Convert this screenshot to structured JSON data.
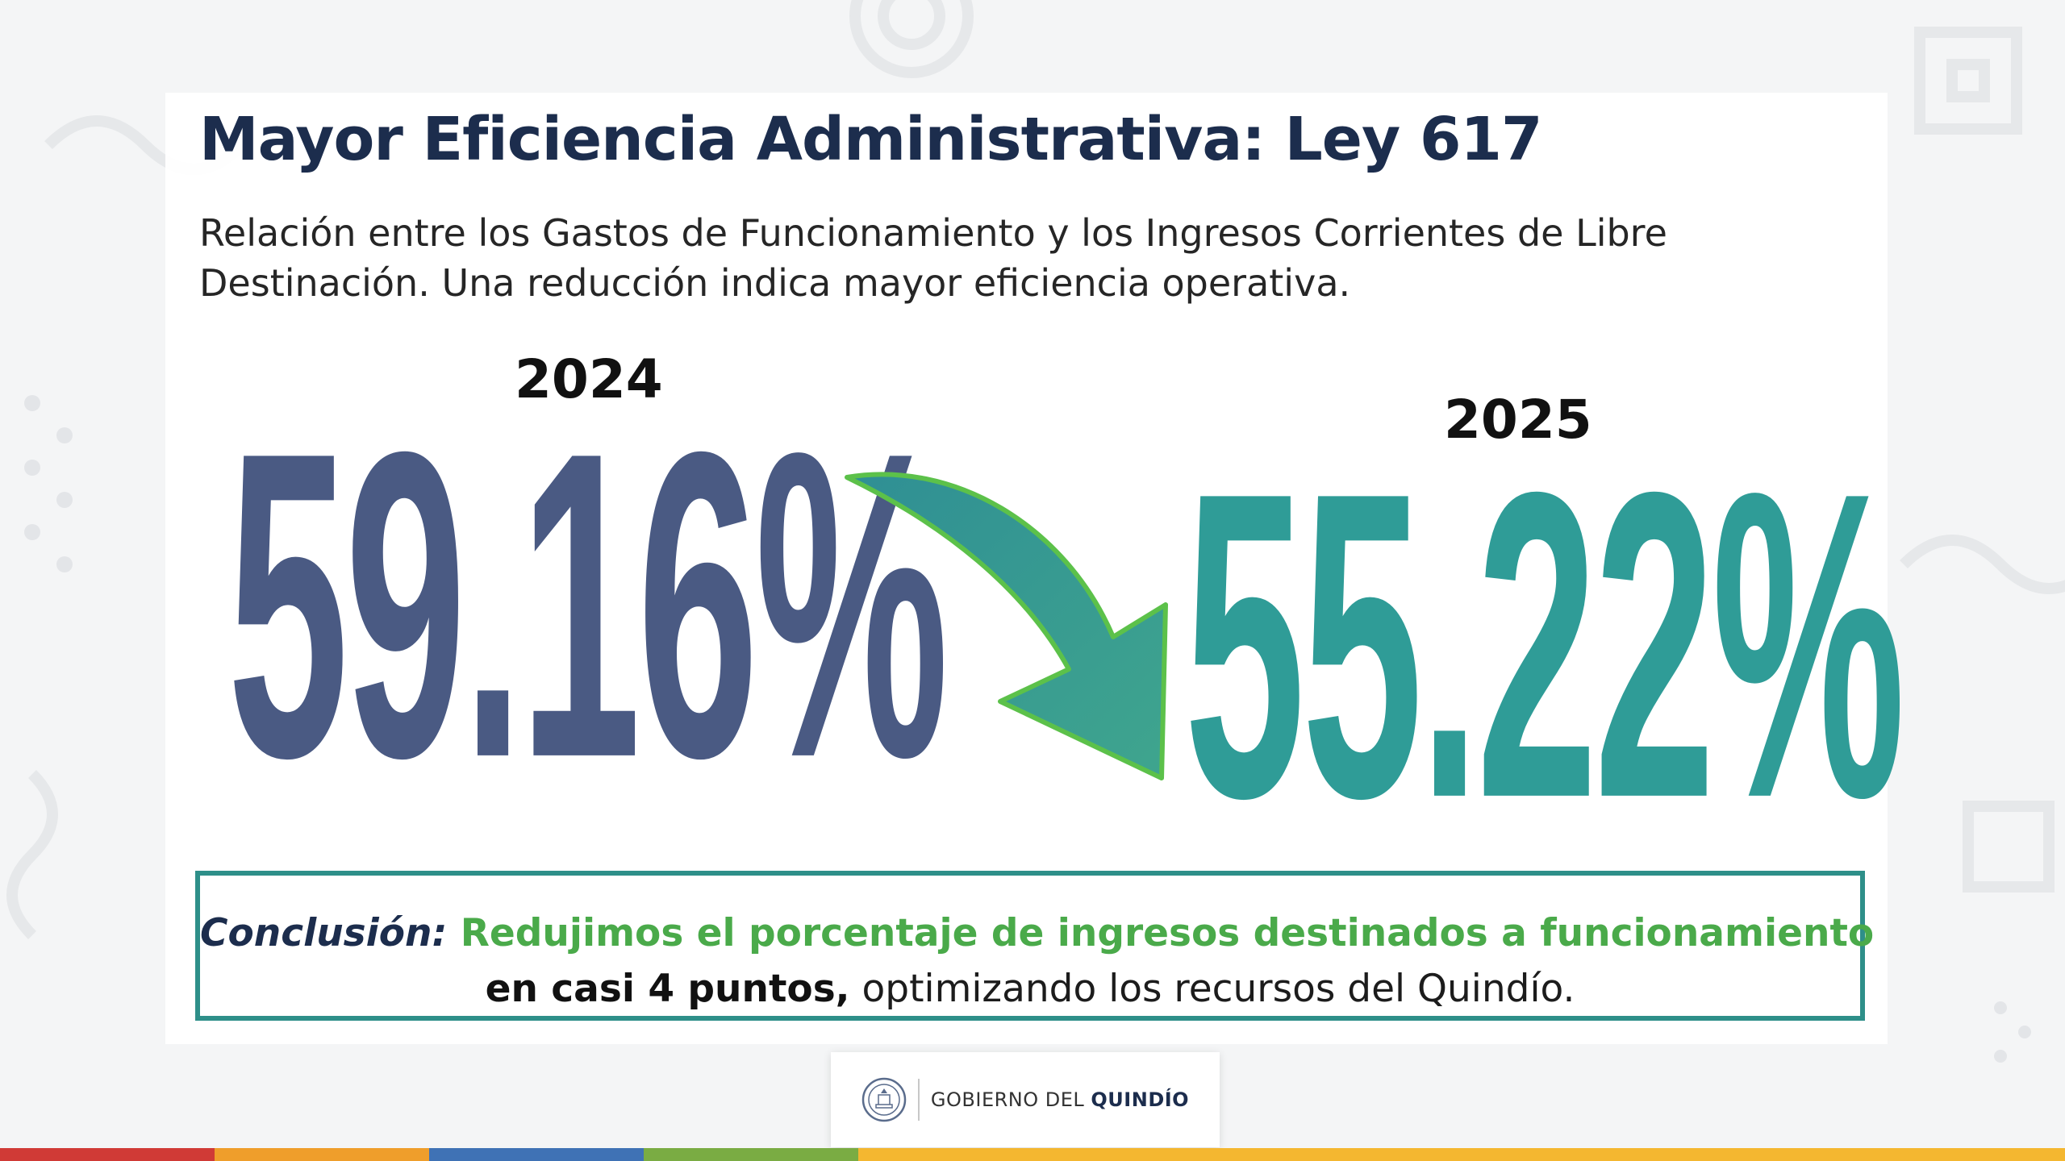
{
  "slide": {
    "title": "Mayor Eficiencia Administrativa: Ley 617",
    "subtitle": "Relación entre los Gastos de Funcionamiento y los Ingresos Corrientes de Libre Destinación. Una reducción indica mayor eficiencia operativa."
  },
  "comparison": {
    "left": {
      "year": "2024",
      "value": "59.16%",
      "color": "#4a5a83"
    },
    "right": {
      "year": "2025",
      "value": "55.22%",
      "color": "#2f9c97"
    },
    "arrow_icon": "curved-down-arrow-icon"
  },
  "conclusion": {
    "label": "Conclusión:",
    "highlight": "Redujimos el porcentaje de ingresos destinados a funcionamiento",
    "strong": "en casi 4 puntos,",
    "rest": " optimizando los recursos del Quindío."
  },
  "footer": {
    "logo_text_regular": "GOBIERNO DEL ",
    "logo_text_bold": "QUINDÍO",
    "seal_icon": "government-seal-icon",
    "stripe_colors": [
      "#d03a36",
      "#ef9e2b",
      "#3f72b5",
      "#7aac43",
      "#f4b730"
    ]
  }
}
